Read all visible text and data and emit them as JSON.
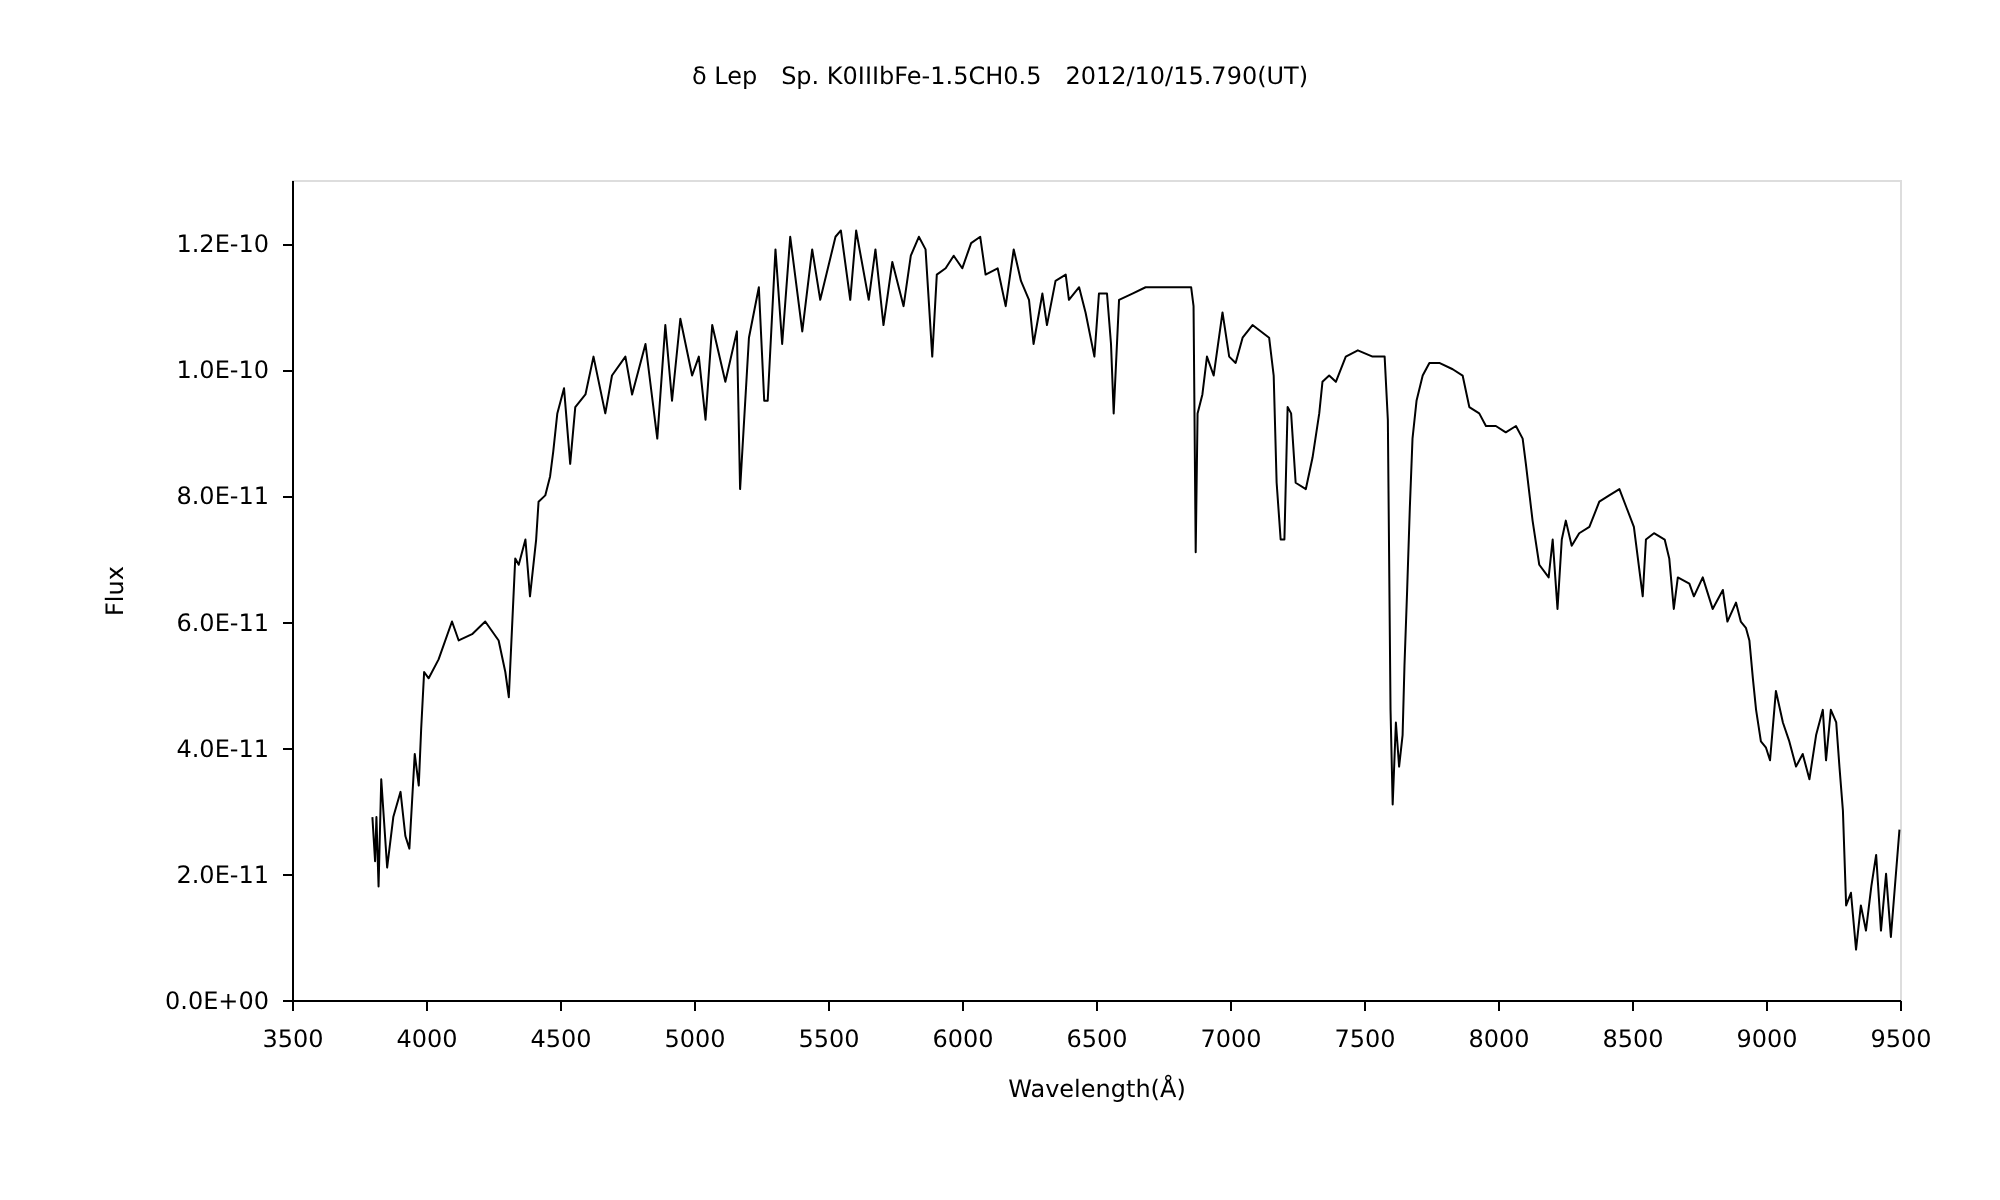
{
  "chart_data": {
    "type": "line",
    "title": "δ Lep　Sp. K0IIIbFe-1.5CH0.5　2012/10/15.790(UT)",
    "xlabel": "Wavelength(Å)",
    "ylabel": "Flux",
    "xlim": [
      3500,
      9500
    ],
    "xticks": [
      3500,
      4000,
      4500,
      5000,
      5500,
      6000,
      6500,
      7000,
      7500,
      8000,
      8500,
      9000,
      9500
    ],
    "ylim": [
      0,
      1.3e-10
    ],
    "yticks": [
      {
        "value": 0,
        "label": "0.0E+00"
      },
      {
        "value": 2e-11,
        "label": "2.0E-11"
      },
      {
        "value": 4e-11,
        "label": "4.0E-11"
      },
      {
        "value": 6e-11,
        "label": "6.0E-11"
      },
      {
        "value": 8e-11,
        "label": "8.0E-11"
      },
      {
        "value": 1e-10,
        "label": "1.0E-10"
      },
      {
        "value": 1.2e-10,
        "label": "1.2E-10"
      }
    ],
    "x": [
      3800,
      3810,
      3815,
      3823,
      3833,
      3855,
      3878,
      3905,
      3923,
      3938,
      3958,
      3973,
      3982,
      3993,
      4010,
      4047,
      4097,
      4122,
      4172,
      4221,
      4271,
      4296,
      4309,
      4321,
      4333,
      4346,
      4371,
      4388,
      4411,
      4420,
      4445,
      4463,
      4475,
      4490,
      4515,
      4538,
      4557,
      4595,
      4625,
      4669,
      4694,
      4744,
      4769,
      4819,
      4863,
      4893,
      4918,
      4949,
      4993,
      5018,
      5043,
      5068,
      5117,
      5160,
      5172,
      5205,
      5242,
      5262,
      5275,
      5304,
      5329,
      5359,
      5404,
      5441,
      5471,
      5528,
      5548,
      5583,
      5605,
      5652,
      5677,
      5707,
      5740,
      5782,
      5809,
      5839,
      5864,
      5889,
      5906,
      5939,
      5969,
      6001,
      6034,
      6068,
      6088,
      6133,
      6163,
      6193,
      6220,
      6250,
      6267,
      6300,
      6317,
      6349,
      6387,
      6399,
      6437,
      6461,
      6494,
      6511,
      6541,
      6556,
      6566,
      6586,
      6636,
      6685,
      6760,
      6823,
      6855,
      6864,
      6872,
      6879,
      6897,
      6914,
      6939,
      6972,
      6997,
      7021,
      7047,
      7084,
      7146,
      7163,
      7174,
      7189,
      7203,
      7215,
      7228,
      7245,
      7283,
      7308,
      7333,
      7345,
      7370,
      7395,
      7432,
      7477,
      7532,
      7577,
      7589,
      7599,
      7607,
      7619,
      7631,
      7644,
      7651,
      7661,
      7671,
      7681,
      7696,
      7719,
      7744,
      7781,
      7831,
      7868,
      7893,
      7930,
      7955,
      7992,
      8029,
      8067,
      8092,
      8104,
      8129,
      8154,
      8189,
      8204,
      8222,
      8238,
      8253,
      8275,
      8303,
      8341,
      8378,
      8415,
      8453,
      8480,
      8507,
      8540,
      8552,
      8582,
      8622,
      8639,
      8656,
      8671,
      8714,
      8731,
      8764,
      8801,
      8839,
      8856,
      8888,
      8906,
      8925,
      8938,
      8951,
      8963,
      8981,
      9000,
      9015,
      9037,
      9063,
      9087,
      9112,
      9137,
      9162,
      9187,
      9212,
      9224,
      9242,
      9262,
      9274,
      9287,
      9299,
      9317,
      9336,
      9354,
      9373,
      9393,
      9411,
      9429,
      9448,
      9466,
      9481,
      9498
    ],
    "series": [
      {
        "color": "#000000",
        "values": [
          2.9e-11,
          2.2e-11,
          2.9e-11,
          1.8e-11,
          3.5e-11,
          2.1e-11,
          2.9e-11,
          3.3e-11,
          2.6e-11,
          2.4e-11,
          3.9e-11,
          3.4e-11,
          4.3e-11,
          5.2e-11,
          5.1e-11,
          5.4e-11,
          6e-11,
          5.7e-11,
          5.8e-11,
          6e-11,
          5.7e-11,
          5.2e-11,
          4.8e-11,
          5.9e-11,
          7e-11,
          6.9e-11,
          7.3e-11,
          6.4e-11,
          7.3e-11,
          7.9e-11,
          8e-11,
          8.3e-11,
          8.7e-11,
          9.3e-11,
          9.7e-11,
          8.5e-11,
          9.4e-11,
          9.6e-11,
          1.02e-10,
          9.3e-11,
          9.9e-11,
          1.02e-10,
          9.6e-11,
          1.04e-10,
          8.9e-11,
          1.07e-10,
          9.5e-11,
          1.08e-10,
          9.9e-11,
          1.02e-10,
          9.2e-11,
          1.07e-10,
          9.8e-11,
          1.06e-10,
          8.1e-11,
          1.05e-10,
          1.13e-10,
          9.5e-11,
          9.5e-11,
          1.19e-10,
          1.04e-10,
          1.21e-10,
          1.06e-10,
          1.19e-10,
          1.11e-10,
          1.21e-10,
          1.22e-10,
          1.11e-10,
          1.22e-10,
          1.11e-10,
          1.19e-10,
          1.07e-10,
          1.17e-10,
          1.1e-10,
          1.18e-10,
          1.21e-10,
          1.19e-10,
          1.02e-10,
          1.15e-10,
          1.16e-10,
          1.18e-10,
          1.16e-10,
          1.2e-10,
          1.21e-10,
          1.15e-10,
          1.16e-10,
          1.1e-10,
          1.19e-10,
          1.14e-10,
          1.11e-10,
          1.04e-10,
          1.12e-10,
          1.07e-10,
          1.14e-10,
          1.15e-10,
          1.11e-10,
          1.13e-10,
          1.09e-10,
          1.02e-10,
          1.12e-10,
          1.12e-10,
          1.04e-10,
          9.3e-11,
          1.11e-10,
          1.12e-10,
          1.13e-10,
          1.13e-10,
          1.13e-10,
          1.13e-10,
          1.1e-10,
          7.1e-11,
          9.3e-11,
          9.6e-11,
          1.02e-10,
          9.9e-11,
          1.09e-10,
          1.02e-10,
          1.01e-10,
          1.05e-10,
          1.07e-10,
          1.05e-10,
          9.9e-11,
          8.2e-11,
          7.3e-11,
          7.3e-11,
          9.4e-11,
          9.3e-11,
          8.2e-11,
          8.1e-11,
          8.6e-11,
          9.3e-11,
          9.8e-11,
          9.9e-11,
          9.8e-11,
          1.02e-10,
          1.03e-10,
          1.02e-10,
          1.02e-10,
          9.2e-11,
          4.6e-11,
          3.1e-11,
          4.4e-11,
          3.7e-11,
          4.2e-11,
          5.3e-11,
          6.5e-11,
          7.8e-11,
          8.9e-11,
          9.5e-11,
          9.9e-11,
          1.01e-10,
          1.01e-10,
          1e-10,
          9.9e-11,
          9.4e-11,
          9.3e-11,
          9.1e-11,
          9.1e-11,
          9e-11,
          9.1e-11,
          8.9e-11,
          8.5e-11,
          7.6e-11,
          6.9e-11,
          6.7e-11,
          7.3e-11,
          6.2e-11,
          7.3e-11,
          7.6e-11,
          7.2e-11,
          7.4e-11,
          7.5e-11,
          7.9e-11,
          8e-11,
          8.1e-11,
          7.8e-11,
          7.5e-11,
          6.4e-11,
          7.3e-11,
          7.4e-11,
          7.3e-11,
          7e-11,
          6.2e-11,
          6.7e-11,
          6.6e-11,
          6.4e-11,
          6.7e-11,
          6.2e-11,
          6.5e-11,
          6e-11,
          6.3e-11,
          6e-11,
          5.9e-11,
          5.7e-11,
          5.1e-11,
          4.6e-11,
          4.1e-11,
          4e-11,
          3.8e-11,
          4.9e-11,
          4.4e-11,
          4.1e-11,
          3.7e-11,
          3.9e-11,
          3.5e-11,
          4.2e-11,
          4.6e-11,
          3.8e-11,
          4.6e-11,
          4.4e-11,
          3.7e-11,
          3e-11,
          1.5e-11,
          1.7e-11,
          8e-12,
          1.5e-11,
          1.1e-11,
          1.8e-11,
          2.3e-11,
          1.1e-11,
          2e-11,
          1e-11,
          1.8e-11,
          2.7e-11
        ]
      }
    ]
  }
}
